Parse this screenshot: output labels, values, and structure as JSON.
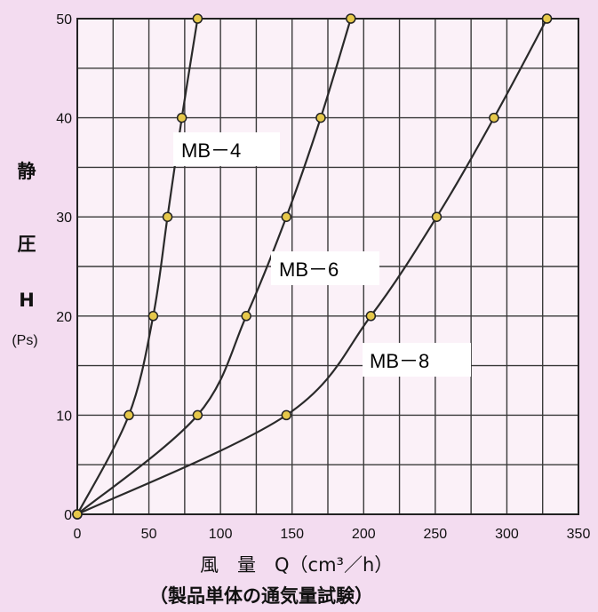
{
  "chart_data": {
    "type": "line",
    "title": "",
    "ylabel": [
      "静",
      "圧",
      "H",
      "(Ps)"
    ],
    "xlabel": "風　量　Q（cm³／h）",
    "caption": "（製品単体の通気量試験）",
    "xlim": [
      0,
      350
    ],
    "ylim": [
      0,
      50
    ],
    "x_ticks": [
      0,
      50,
      100,
      150,
      200,
      250,
      300,
      350
    ],
    "y_ticks": [
      0,
      10,
      20,
      30,
      40,
      50
    ],
    "grid": true,
    "series": [
      {
        "name": "MB－4",
        "x": [
          0,
          36,
          53,
          63,
          73,
          84
        ],
        "y": [
          0,
          10,
          20,
          30,
          40,
          50
        ]
      },
      {
        "name": "MB－6",
        "x": [
          0,
          84,
          118,
          146,
          170,
          191
        ],
        "y": [
          0,
          10,
          20,
          30,
          40,
          50
        ]
      },
      {
        "name": "MB－8",
        "x": [
          0,
          146,
          205,
          251,
          291,
          328
        ],
        "y": [
          0,
          10,
          20,
          30,
          40,
          50
        ]
      }
    ],
    "colors": {
      "background": "#f3dcf0",
      "plot_area": "#fbf1f8",
      "grid": "#3a3a3a",
      "line": "#2a2a2a",
      "marker_fill": "#e6c84a"
    }
  }
}
